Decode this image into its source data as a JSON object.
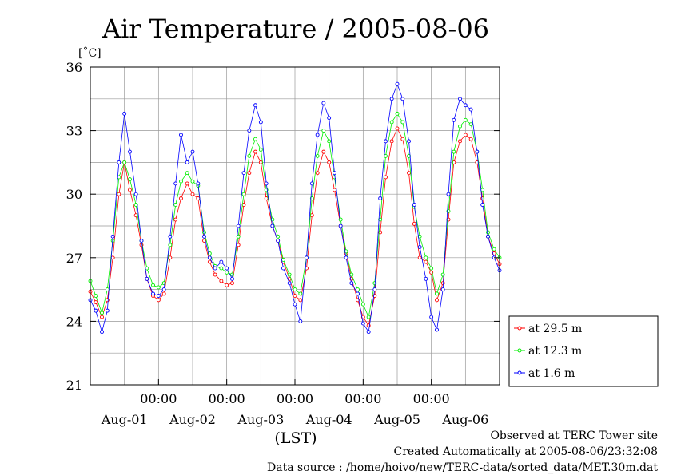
{
  "chart_data": {
    "type": "line",
    "title": "Air Temperature / 2005-08-06",
    "ylabel": "[˚C]",
    "xlabel": "(LST)",
    "ylim": [
      21,
      36
    ],
    "y_ticks": [
      "21",
      "24",
      "27",
      "30",
      "33",
      "36"
    ],
    "x_time_ticks": [
      "00:00",
      "00:00",
      "00:00",
      "00:00",
      "00:00"
    ],
    "x_day_labels": [
      "Aug-01",
      "Aug-02",
      "Aug-03",
      "Aug-04",
      "Aug-05",
      "Aug-06"
    ],
    "x_range_days": [
      0,
      6
    ],
    "grid": true,
    "legend_position": "right",
    "series": [
      {
        "name": "at 29.5 m",
        "color": "#ff0000",
        "points": [
          [
            0.0,
            25.4
          ],
          [
            0.08,
            24.9
          ],
          [
            0.17,
            24.2
          ],
          [
            0.25,
            25.0
          ],
          [
            0.33,
            27.0
          ],
          [
            0.42,
            30.0
          ],
          [
            0.5,
            31.5
          ],
          [
            0.58,
            30.2
          ],
          [
            0.67,
            29.0
          ],
          [
            0.75,
            27.6
          ],
          [
            0.83,
            26.0
          ],
          [
            0.92,
            25.2
          ],
          [
            1.0,
            25.0
          ],
          [
            1.08,
            25.3
          ],
          [
            1.17,
            27.0
          ],
          [
            1.25,
            28.8
          ],
          [
            1.33,
            29.8
          ],
          [
            1.42,
            30.5
          ],
          [
            1.5,
            30.0
          ],
          [
            1.58,
            29.8
          ],
          [
            1.67,
            27.8
          ],
          [
            1.75,
            26.8
          ],
          [
            1.83,
            26.2
          ],
          [
            1.92,
            25.9
          ],
          [
            2.0,
            25.7
          ],
          [
            2.08,
            25.8
          ],
          [
            2.17,
            27.6
          ],
          [
            2.25,
            29.5
          ],
          [
            2.33,
            31.0
          ],
          [
            2.42,
            32.0
          ],
          [
            2.5,
            31.5
          ],
          [
            2.58,
            29.8
          ],
          [
            2.67,
            28.5
          ],
          [
            2.75,
            27.8
          ],
          [
            2.83,
            26.8
          ],
          [
            2.92,
            26.0
          ],
          [
            3.0,
            25.2
          ],
          [
            3.08,
            25.0
          ],
          [
            3.17,
            26.5
          ],
          [
            3.25,
            29.0
          ],
          [
            3.33,
            31.0
          ],
          [
            3.42,
            32.0
          ],
          [
            3.5,
            31.5
          ],
          [
            3.58,
            30.2
          ],
          [
            3.67,
            28.5
          ],
          [
            3.75,
            27.2
          ],
          [
            3.83,
            26.0
          ],
          [
            3.92,
            25.0
          ],
          [
            4.0,
            24.2
          ],
          [
            4.08,
            23.8
          ],
          [
            4.17,
            25.2
          ],
          [
            4.25,
            28.2
          ],
          [
            4.33,
            30.8
          ],
          [
            4.42,
            32.5
          ],
          [
            4.5,
            33.1
          ],
          [
            4.58,
            32.6
          ],
          [
            4.67,
            31.0
          ],
          [
            4.75,
            28.6
          ],
          [
            4.83,
            27.0
          ],
          [
            4.92,
            26.8
          ],
          [
            5.0,
            26.3
          ],
          [
            5.08,
            25.0
          ],
          [
            5.17,
            25.8
          ],
          [
            5.25,
            28.8
          ],
          [
            5.33,
            31.5
          ],
          [
            5.42,
            32.5
          ],
          [
            5.5,
            32.8
          ],
          [
            5.58,
            32.6
          ],
          [
            5.67,
            31.5
          ],
          [
            5.75,
            29.8
          ],
          [
            5.83,
            28.0
          ],
          [
            5.92,
            27.2
          ],
          [
            6.0,
            26.7
          ]
        ]
      },
      {
        "name": "at 12.3 m",
        "color": "#00ee00",
        "points": [
          [
            0.0,
            25.9
          ],
          [
            0.08,
            25.2
          ],
          [
            0.17,
            24.4
          ],
          [
            0.25,
            25.5
          ],
          [
            0.33,
            27.8
          ],
          [
            0.42,
            30.8
          ],
          [
            0.5,
            31.5
          ],
          [
            0.58,
            30.7
          ],
          [
            0.67,
            29.5
          ],
          [
            0.75,
            27.8
          ],
          [
            0.83,
            26.5
          ],
          [
            0.92,
            25.7
          ],
          [
            1.0,
            25.6
          ],
          [
            1.08,
            25.8
          ],
          [
            1.17,
            27.6
          ],
          [
            1.25,
            29.5
          ],
          [
            1.33,
            30.6
          ],
          [
            1.42,
            31.0
          ],
          [
            1.5,
            30.6
          ],
          [
            1.58,
            30.4
          ],
          [
            1.67,
            28.2
          ],
          [
            1.75,
            27.2
          ],
          [
            1.83,
            26.6
          ],
          [
            1.92,
            26.5
          ],
          [
            2.0,
            26.3
          ],
          [
            2.08,
            26.2
          ],
          [
            2.17,
            28.0
          ],
          [
            2.25,
            30.0
          ],
          [
            2.33,
            31.8
          ],
          [
            2.42,
            32.6
          ],
          [
            2.5,
            32.1
          ],
          [
            2.58,
            30.2
          ],
          [
            2.67,
            28.8
          ],
          [
            2.75,
            28.0
          ],
          [
            2.83,
            26.9
          ],
          [
            2.92,
            26.2
          ],
          [
            3.0,
            25.5
          ],
          [
            3.08,
            25.3
          ],
          [
            3.17,
            27.0
          ],
          [
            3.25,
            29.8
          ],
          [
            3.33,
            31.8
          ],
          [
            3.42,
            33.0
          ],
          [
            3.5,
            32.5
          ],
          [
            3.58,
            30.8
          ],
          [
            3.67,
            28.8
          ],
          [
            3.75,
            27.3
          ],
          [
            3.83,
            26.2
          ],
          [
            3.92,
            25.5
          ],
          [
            4.0,
            24.8
          ],
          [
            4.08,
            24.2
          ],
          [
            4.17,
            25.8
          ],
          [
            4.25,
            28.8
          ],
          [
            4.33,
            31.8
          ],
          [
            4.42,
            33.4
          ],
          [
            4.5,
            33.8
          ],
          [
            4.58,
            33.4
          ],
          [
            4.67,
            31.8
          ],
          [
            4.75,
            29.4
          ],
          [
            4.83,
            28.0
          ],
          [
            4.92,
            27.0
          ],
          [
            5.0,
            26.5
          ],
          [
            5.08,
            25.3
          ],
          [
            5.17,
            26.2
          ],
          [
            5.25,
            29.2
          ],
          [
            5.33,
            32.0
          ],
          [
            5.42,
            33.2
          ],
          [
            5.5,
            33.5
          ],
          [
            5.58,
            33.3
          ],
          [
            5.67,
            32.0
          ],
          [
            5.75,
            30.2
          ],
          [
            5.83,
            28.2
          ],
          [
            5.92,
            27.4
          ],
          [
            6.0,
            27.0
          ]
        ]
      },
      {
        "name": "at 1.6 m",
        "color": "#0000ff",
        "points": [
          [
            0.0,
            25.0
          ],
          [
            0.08,
            24.5
          ],
          [
            0.17,
            23.5
          ],
          [
            0.25,
            24.5
          ],
          [
            0.33,
            28.0
          ],
          [
            0.42,
            31.5
          ],
          [
            0.5,
            33.8
          ],
          [
            0.58,
            32.0
          ],
          [
            0.67,
            30.0
          ],
          [
            0.75,
            27.8
          ],
          [
            0.83,
            26.0
          ],
          [
            0.92,
            25.3
          ],
          [
            1.0,
            25.2
          ],
          [
            1.08,
            25.5
          ],
          [
            1.17,
            28.0
          ],
          [
            1.25,
            30.5
          ],
          [
            1.33,
            32.8
          ],
          [
            1.42,
            31.5
          ],
          [
            1.5,
            32.0
          ],
          [
            1.58,
            30.5
          ],
          [
            1.67,
            28.0
          ],
          [
            1.75,
            27.0
          ],
          [
            1.83,
            26.5
          ],
          [
            1.92,
            26.8
          ],
          [
            2.0,
            26.5
          ],
          [
            2.08,
            26.0
          ],
          [
            2.17,
            28.5
          ],
          [
            2.25,
            31.0
          ],
          [
            2.33,
            33.0
          ],
          [
            2.42,
            34.2
          ],
          [
            2.5,
            33.4
          ],
          [
            2.58,
            30.5
          ],
          [
            2.67,
            28.5
          ],
          [
            2.75,
            27.8
          ],
          [
            2.83,
            26.5
          ],
          [
            2.92,
            25.8
          ],
          [
            3.0,
            24.8
          ],
          [
            3.08,
            24.0
          ],
          [
            3.17,
            27.0
          ],
          [
            3.25,
            30.5
          ],
          [
            3.33,
            32.8
          ],
          [
            3.42,
            34.3
          ],
          [
            3.5,
            33.6
          ],
          [
            3.58,
            31.0
          ],
          [
            3.67,
            28.5
          ],
          [
            3.75,
            27.0
          ],
          [
            3.83,
            25.8
          ],
          [
            3.92,
            25.3
          ],
          [
            4.0,
            23.9
          ],
          [
            4.08,
            23.5
          ],
          [
            4.17,
            25.5
          ],
          [
            4.25,
            29.8
          ],
          [
            4.33,
            32.5
          ],
          [
            4.42,
            34.5
          ],
          [
            4.5,
            35.2
          ],
          [
            4.58,
            34.5
          ],
          [
            4.67,
            32.5
          ],
          [
            4.75,
            29.5
          ],
          [
            4.83,
            27.5
          ],
          [
            4.92,
            26.0
          ],
          [
            5.0,
            24.2
          ],
          [
            5.08,
            23.6
          ],
          [
            5.17,
            25.5
          ],
          [
            5.25,
            30.0
          ],
          [
            5.33,
            33.5
          ],
          [
            5.42,
            34.5
          ],
          [
            5.5,
            34.2
          ],
          [
            5.58,
            34.0
          ],
          [
            5.67,
            32.0
          ],
          [
            5.75,
            29.5
          ],
          [
            5.83,
            28.0
          ],
          [
            5.92,
            27.0
          ],
          [
            6.0,
            26.4
          ]
        ]
      }
    ]
  },
  "footer": {
    "observed": "Observed at TERC Tower site",
    "created": "Created Automatically at 2005-08-06/23:32:08",
    "source": "Data source : /home/hoivo/new/TERC-data/sorted_data/MET.30m.dat"
  }
}
